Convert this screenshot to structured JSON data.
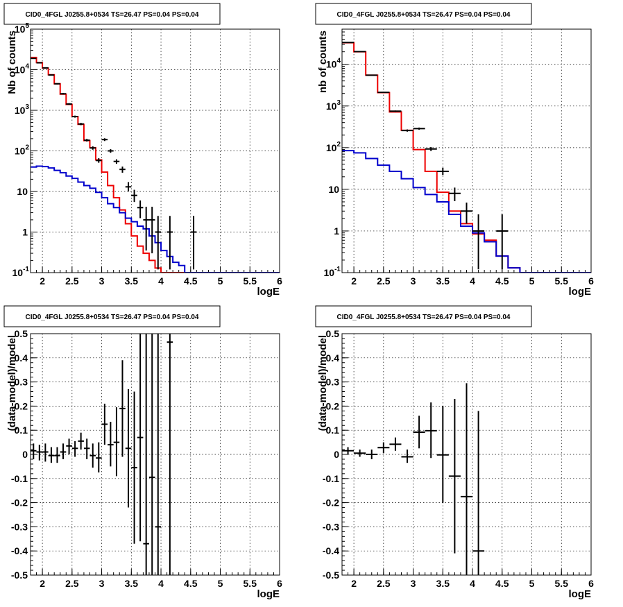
{
  "colors": {
    "data": "#000000",
    "total_model": "#ee0000",
    "background_model": "#0000cc"
  },
  "chart_data": [
    {
      "type": "line",
      "title": "CID0_4FGL J0255.8+0534 TS=26.47 PS=0.04 PS=0.04",
      "xlabel": "logE",
      "ylabel": "Nb of counts",
      "xlim": [
        1.8,
        6.0
      ],
      "ylim": [
        0.1,
        100000
      ],
      "ylog": true,
      "grid": true,
      "x_ticks": [
        "2",
        "2.5",
        "3",
        "3.5",
        "4",
        "4.5",
        "5",
        "5.5",
        "6"
      ],
      "y_ticks": [
        "10^-1",
        "1",
        "10",
        "10^2",
        "10^3",
        "10^4",
        "10^5"
      ],
      "bin_edges": [
        1.8,
        1.9,
        2.0,
        2.1,
        2.2,
        2.3,
        2.4,
        2.5,
        2.6,
        2.7,
        2.8,
        2.9,
        3.0,
        3.1,
        3.2,
        3.3,
        3.4,
        3.5,
        3.6,
        3.7,
        3.8,
        3.9,
        4.0,
        4.1,
        4.2,
        4.3,
        4.4,
        4.5,
        4.6,
        4.7,
        4.8,
        4.9,
        5.0,
        5.1,
        5.2,
        5.3,
        5.4,
        5.5,
        5.6,
        5.7,
        5.8,
        5.9,
        6.0
      ],
      "series": [
        {
          "name": "",
          "kind": "step",
          "color_key": "total_model",
          "values": [
            20000,
            15000,
            11000,
            7500,
            4500,
            2500,
            1400,
            700,
            450,
            180,
            120,
            60,
            30,
            14,
            7,
            3.5,
            1.6,
            0.8,
            0.45,
            0.3,
            0.2,
            0.13,
            0.1,
            0.1,
            0.1,
            0.1,
            0.1,
            0.1,
            0.1,
            0.1,
            0.1,
            0.1,
            0.1,
            0.1,
            0.1,
            0.1,
            0.1,
            0.1,
            0.1,
            0.1,
            0.1,
            0.1
          ]
        },
        {
          "name": "",
          "kind": "step",
          "color_key": "background_model",
          "values": [
            40,
            42,
            41,
            38,
            33,
            29,
            24,
            21,
            17,
            14,
            12,
            9.5,
            7,
            5,
            4,
            3,
            2.2,
            1.8,
            1.4,
            1.2,
            0.8,
            0.55,
            0.35,
            0.25,
            0.18,
            0.15,
            0.1,
            0.1,
            0.1,
            0.1,
            0.1,
            0.1,
            0.1,
            0.1,
            0.1,
            0.1,
            0.1,
            0.1,
            0.1,
            0.1,
            0.1,
            0.1
          ]
        },
        {
          "name": "",
          "kind": "errorbar",
          "color_key": "data",
          "points": [
            {
              "x": 1.85,
              "y": 19000,
              "lo": 18700,
              "hi": 19300
            },
            {
              "x": 1.95,
              "y": 14800,
              "lo": 14500,
              "hi": 15100
            },
            {
              "x": 2.05,
              "y": 11100,
              "lo": 10800,
              "hi": 11400
            },
            {
              "x": 2.15,
              "y": 7400,
              "lo": 7200,
              "hi": 7600
            },
            {
              "x": 2.25,
              "y": 4500,
              "lo": 4350,
              "hi": 4650
            },
            {
              "x": 2.35,
              "y": 2550,
              "lo": 2450,
              "hi": 2650
            },
            {
              "x": 2.45,
              "y": 1430,
              "lo": 1360,
              "hi": 1500
            },
            {
              "x": 2.55,
              "y": 700,
              "lo": 660,
              "hi": 740
            },
            {
              "x": 2.65,
              "y": 460,
              "lo": 430,
              "hi": 490
            },
            {
              "x": 2.75,
              "y": 183,
              "lo": 170,
              "hi": 197
            },
            {
              "x": 2.85,
              "y": 118,
              "lo": 107,
              "hi": 129
            },
            {
              "x": 2.95,
              "y": 58,
              "lo": 51,
              "hi": 66
            },
            {
              "x": 3.05,
              "y": 190,
              "lo": 175,
              "hi": 205
            },
            {
              "x": 3.15,
              "y": 100,
              "lo": 90,
              "hi": 110
            },
            {
              "x": 3.25,
              "y": 55,
              "lo": 48,
              "hi": 62
            },
            {
              "x": 3.35,
              "y": 35,
              "lo": 29,
              "hi": 41
            },
            {
              "x": 3.45,
              "y": 13,
              "lo": 10,
              "hi": 17
            },
            {
              "x": 3.55,
              "y": 8,
              "lo": 5.5,
              "hi": 11
            },
            {
              "x": 3.65,
              "y": 4,
              "lo": 2.2,
              "hi": 6
            },
            {
              "x": 3.75,
              "y": 2,
              "lo": 0.35,
              "hi": 4.2
            },
            {
              "x": 3.85,
              "y": 2,
              "lo": 0.3,
              "hi": 4.2
            },
            {
              "x": 3.95,
              "y": 1,
              "lo": 0.12,
              "hi": 2.5
            },
            {
              "x": 4.15,
              "y": 1,
              "lo": 0.12,
              "hi": 2.5
            },
            {
              "x": 4.55,
              "y": 1,
              "lo": 0.12,
              "hi": 2.5
            }
          ]
        }
      ]
    },
    {
      "type": "line",
      "title": "CID0_4FGL J0255.8+0534 TS=26.47 PS=0.04 PS=0.04",
      "xlabel": "logE",
      "ylabel": "nb of counts",
      "xlim": [
        1.8,
        6.0
      ],
      "ylim": [
        0.1,
        70000
      ],
      "ylog": true,
      "grid": true,
      "x_ticks": [
        "2",
        "2.5",
        "3",
        "3.5",
        "4",
        "4.5",
        "5",
        "5.5",
        "6"
      ],
      "y_ticks": [
        "10^-1",
        "1",
        "10",
        "10^2",
        "10^3",
        "10^4"
      ],
      "bin_edges": [
        1.8,
        2.0,
        2.2,
        2.4,
        2.6,
        2.8,
        3.0,
        3.2,
        3.4,
        3.6,
        3.8,
        4.0,
        4.2,
        4.4,
        4.6,
        4.8,
        5.0,
        5.2,
        5.4,
        5.6,
        5.8,
        6.0
      ],
      "series": [
        {
          "name": "",
          "kind": "step",
          "color_key": "total_model",
          "values": [
            33000,
            20000,
            5500,
            2100,
            720,
            260,
            90,
            27,
            8.5,
            3,
            1.5,
            0.85,
            0.6,
            0.25,
            0.13,
            0.1,
            0.1,
            0.1,
            0.1,
            0.1,
            0.1
          ]
        },
        {
          "name": "",
          "kind": "step",
          "color_key": "background_model",
          "values": [
            85,
            75,
            55,
            38,
            27,
            18,
            11,
            7.5,
            5,
            2.5,
            1.3,
            0.9,
            0.55,
            0.25,
            0.13,
            0.1,
            0.1,
            0.1,
            0.1,
            0.1,
            0.1
          ]
        },
        {
          "name": "",
          "kind": "errorbar",
          "color_key": "data",
          "points": [
            {
              "x": 1.9,
              "y": 33500,
              "lo": 33300,
              "hi": 33700
            },
            {
              "x": 2.1,
              "y": 20200,
              "lo": 20000,
              "hi": 20400
            },
            {
              "x": 2.3,
              "y": 5500,
              "lo": 5420,
              "hi": 5580
            },
            {
              "x": 2.5,
              "y": 2130,
              "lo": 2080,
              "hi": 2180
            },
            {
              "x": 2.7,
              "y": 750,
              "lo": 722,
              "hi": 778
            },
            {
              "x": 2.9,
              "y": 258,
              "lo": 242,
              "hi": 274
            },
            {
              "x": 3.1,
              "y": 287,
              "lo": 270,
              "hi": 304
            },
            {
              "x": 3.3,
              "y": 93,
              "lo": 83,
              "hi": 103
            },
            {
              "x": 3.5,
              "y": 27,
              "lo": 22,
              "hi": 33
            },
            {
              "x": 3.7,
              "y": 8,
              "lo": 5.2,
              "hi": 11
            },
            {
              "x": 3.9,
              "y": 3,
              "lo": 1.5,
              "hi": 4.8
            },
            {
              "x": 4.1,
              "y": 1,
              "lo": 0.12,
              "hi": 2.5
            },
            {
              "x": 4.5,
              "y": 1,
              "lo": 0.12,
              "hi": 2.5
            }
          ]
        }
      ]
    },
    {
      "type": "scatter",
      "title": "CID0_4FGL J0255.8+0534 TS=26.47 PS=0.04 PS=0.04",
      "xlabel": "logE",
      "ylabel": "(data-model)/model",
      "xlim": [
        1.8,
        6.0
      ],
      "ylim": [
        -0.5,
        0.5
      ],
      "ylog": false,
      "grid": true,
      "x_ticks": [
        "2",
        "2.5",
        "3",
        "3.5",
        "4",
        "4.5",
        "5",
        "5.5",
        "6"
      ],
      "y_ticks": [
        "-0.5",
        "-0.4",
        "-0.3",
        "-0.2",
        "-0.1",
        "0",
        "0.1",
        "0.2",
        "0.3",
        "0.4",
        "0.5"
      ],
      "bin_width": 0.1,
      "series": [
        {
          "name": "",
          "kind": "errorbar",
          "color_key": "data",
          "points": [
            {
              "x": 1.85,
              "y": 0.015,
              "lo": -0.02,
              "hi": 0.045
            },
            {
              "x": 1.95,
              "y": 0.01,
              "lo": -0.025,
              "hi": 0.04
            },
            {
              "x": 2.05,
              "y": 0.01,
              "lo": -0.03,
              "hi": 0.045
            },
            {
              "x": 2.15,
              "y": -0.005,
              "lo": -0.035,
              "hi": 0.03
            },
            {
              "x": 2.25,
              "y": -0.005,
              "lo": -0.035,
              "hi": 0.03
            },
            {
              "x": 2.35,
              "y": 0.01,
              "lo": -0.02,
              "hi": 0.045
            },
            {
              "x": 2.45,
              "y": 0.035,
              "lo": 0.0,
              "hi": 0.065
            },
            {
              "x": 2.55,
              "y": 0.025,
              "lo": -0.01,
              "hi": 0.055
            },
            {
              "x": 2.65,
              "y": 0.055,
              "lo": 0.02,
              "hi": 0.09
            },
            {
              "x": 2.75,
              "y": 0.025,
              "lo": -0.02,
              "hi": 0.065
            },
            {
              "x": 2.85,
              "y": -0.005,
              "lo": -0.055,
              "hi": 0.045
            },
            {
              "x": 2.95,
              "y": -0.015,
              "lo": -0.075,
              "hi": 0.05
            },
            {
              "x": 3.05,
              "y": 0.125,
              "lo": 0.04,
              "hi": 0.21
            },
            {
              "x": 3.15,
              "y": 0.04,
              "lo": -0.05,
              "hi": 0.135
            },
            {
              "x": 3.25,
              "y": 0.05,
              "lo": -0.09,
              "hi": 0.195
            },
            {
              "x": 3.35,
              "y": 0.19,
              "lo": -0.01,
              "hi": 0.39
            },
            {
              "x": 3.45,
              "y": 0.025,
              "lo": -0.22,
              "hi": 0.27
            },
            {
              "x": 3.55,
              "y": -0.055,
              "lo": -0.37,
              "hi": 0.26
            },
            {
              "x": 3.65,
              "y": 0.07,
              "lo": -0.36,
              "hi": 0.5
            },
            {
              "x": 3.75,
              "y": -0.37,
              "lo": -0.5,
              "hi": 0.5
            },
            {
              "x": 3.85,
              "y": -0.095,
              "lo": -0.5,
              "hi": 0.5
            },
            {
              "x": 3.95,
              "y": -0.3,
              "lo": -0.5,
              "hi": 0.5
            },
            {
              "x": 4.15,
              "y": 0.465,
              "lo": -0.5,
              "hi": 0.5
            }
          ]
        }
      ]
    },
    {
      "type": "scatter",
      "title": "CID0_4FGL J0255.8+0534 TS=26.47 PS=0.04 PS=0.04",
      "xlabel": "logE",
      "ylabel": "(data-model)/model",
      "xlim": [
        1.8,
        6.0
      ],
      "ylim": [
        -0.5,
        0.5
      ],
      "ylog": false,
      "grid": true,
      "x_ticks": [
        "2",
        "2.5",
        "3",
        "3.5",
        "4",
        "4.5",
        "5",
        "5.5",
        "6"
      ],
      "y_ticks": [
        "-0.5",
        "-0.4",
        "-0.3",
        "-0.2",
        "-0.1",
        "0",
        "0.1",
        "0.2",
        "0.3",
        "0.4",
        "0.5"
      ],
      "bin_width": 0.2,
      "series": [
        {
          "name": "",
          "kind": "errorbar",
          "color_key": "data",
          "points": [
            {
              "x": 1.9,
              "y": 0.015,
              "lo": 0.0,
              "hi": 0.03
            },
            {
              "x": 2.1,
              "y": 0.005,
              "lo": -0.01,
              "hi": 0.02
            },
            {
              "x": 2.3,
              "y": 0.0,
              "lo": -0.02,
              "hi": 0.02
            },
            {
              "x": 2.5,
              "y": 0.028,
              "lo": 0.005,
              "hi": 0.05
            },
            {
              "x": 2.7,
              "y": 0.042,
              "lo": 0.015,
              "hi": 0.07
            },
            {
              "x": 2.9,
              "y": -0.01,
              "lo": -0.035,
              "hi": 0.02
            },
            {
              "x": 3.1,
              "y": 0.092,
              "lo": 0.025,
              "hi": 0.16
            },
            {
              "x": 3.3,
              "y": 0.098,
              "lo": -0.015,
              "hi": 0.215
            },
            {
              "x": 3.5,
              "y": -0.002,
              "lo": -0.2,
              "hi": 0.2
            },
            {
              "x": 3.7,
              "y": -0.09,
              "lo": -0.41,
              "hi": 0.23
            },
            {
              "x": 3.9,
              "y": -0.175,
              "lo": -0.5,
              "hi": 0.295
            },
            {
              "x": 4.1,
              "y": -0.4,
              "lo": -0.5,
              "hi": 0.18
            }
          ]
        }
      ]
    }
  ]
}
